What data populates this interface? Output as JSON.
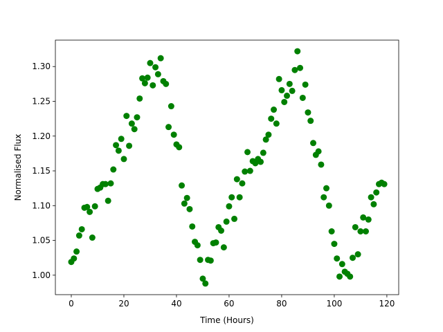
{
  "chart_data": {
    "type": "scatter",
    "color": "#008000",
    "x_label": "Time (Hours)",
    "y_label": "Normalised Flux",
    "xlim": [
      -6.05,
      124.5
    ],
    "ylim": [
      0.972,
      1.338
    ],
    "xticks": [
      0,
      20,
      40,
      60,
      80,
      100,
      120
    ],
    "yticks": [
      {
        "value": 1,
        "label": "1.00"
      },
      1.05,
      {
        "value": 1.1,
        "label": "1.10"
      },
      1.15,
      {
        "value": 1.2,
        "label": "1.20"
      },
      1.25,
      {
        "value": 1.3,
        "label": "1.30"
      }
    ],
    "x": [
      0,
      1,
      2,
      3,
      4,
      5,
      6,
      7,
      8,
      9,
      10,
      11,
      12,
      13,
      14,
      15,
      16,
      17,
      18,
      19,
      20,
      21,
      22,
      23,
      24,
      25,
      26,
      27,
      28,
      29,
      30,
      31,
      32,
      33,
      34,
      35,
      36,
      37,
      38,
      39,
      40,
      41,
      42,
      43,
      44,
      45,
      46,
      47,
      48,
      49,
      50,
      51,
      52,
      53,
      54,
      55,
      56,
      57,
      58,
      59,
      60,
      61,
      62,
      63,
      64,
      65,
      66,
      67,
      68,
      69,
      70,
      71,
      72,
      73,
      74,
      75,
      76,
      77,
      78,
      79,
      80,
      81,
      82,
      83,
      84,
      85,
      86,
      87,
      88,
      89,
      90,
      91,
      92,
      93,
      94,
      95,
      96,
      97,
      98,
      99,
      100,
      101,
      102,
      103,
      104,
      105,
      106,
      107,
      108,
      109,
      110,
      111,
      112,
      113,
      114,
      115,
      116,
      117,
      118,
      119
    ],
    "values": [
      1.019,
      1.024,
      1.034,
      1.057,
      1.066,
      1.097,
      1.098,
      1.091,
      1.054,
      1.099,
      1.124,
      1.126,
      1.131,
      1.131,
      1.107,
      1.132,
      1.152,
      1.187,
      1.179,
      1.196,
      1.167,
      1.229,
      1.186,
      1.218,
      1.21,
      1.227,
      1.254,
      1.283,
      1.276,
      1.284,
      1.305,
      1.273,
      1.299,
      1.289,
      1.312,
      1.279,
      1.275,
      1.213,
      1.243,
      1.202,
      1.188,
      1.184,
      1.129,
      1.103,
      1.111,
      1.095,
      1.07,
      1.048,
      1.043,
      1.022,
      0.995,
      0.988,
      1.022,
      1.021,
      1.046,
      1.047,
      1.069,
      1.064,
      1.04,
      1.077,
      1.099,
      1.112,
      1.081,
      1.138,
      1.112,
      1.132,
      1.149,
      1.177,
      1.15,
      1.164,
      1.161,
      1.167,
      1.163,
      1.176,
      1.195,
      1.202,
      1.225,
      1.238,
      1.218,
      1.282,
      1.266,
      1.249,
      1.258,
      1.275,
      1.265,
      1.295,
      1.322,
      1.298,
      1.255,
      1.274,
      1.234,
      1.222,
      1.19,
      1.173,
      1.178,
      1.159,
      1.112,
      1.125,
      1.1,
      1.063,
      1.045,
      1.024,
      0.998,
      1.016,
      1.005,
      1.002,
      0.998,
      1.025,
      1.069,
      1.03,
      1.063,
      1.083,
      1.063,
      1.08,
      1.112,
      1.102,
      1.119,
      1.131,
      1.133,
      1.131
    ]
  }
}
